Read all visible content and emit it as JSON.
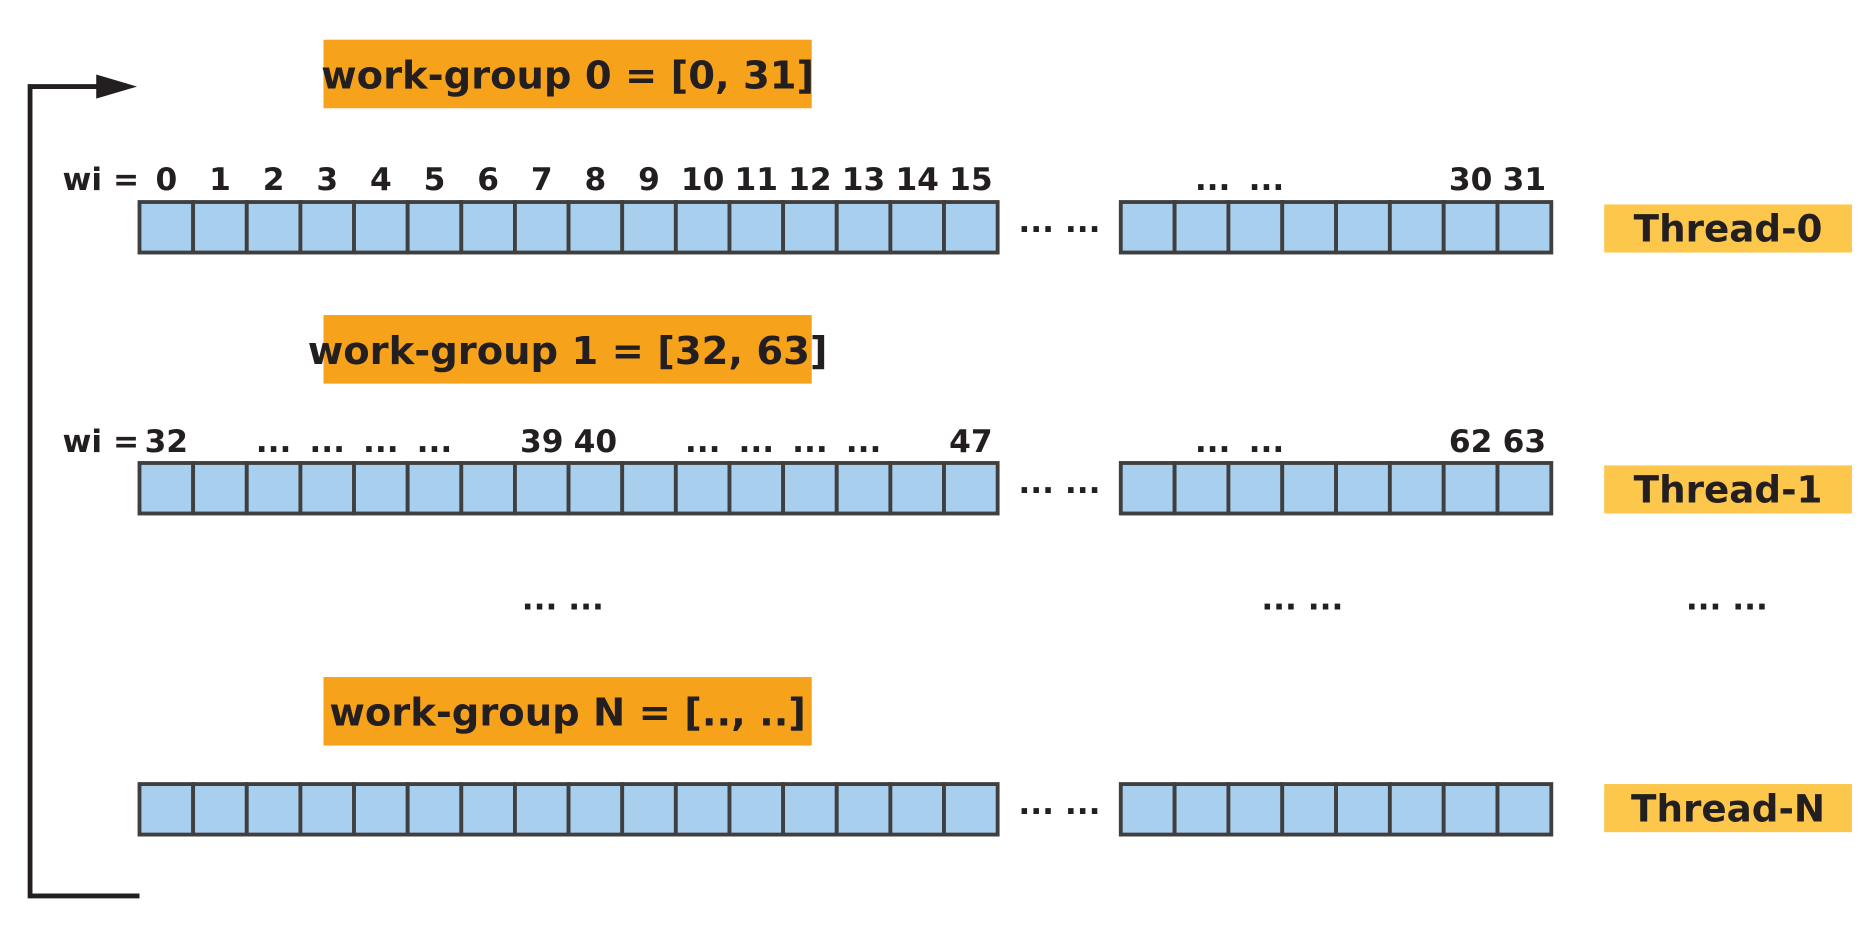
{
  "workgroups": [
    {
      "label": "work-group 0 = [0, 31]",
      "wi_prefix": "wi =",
      "wi_labels_left": [
        "0",
        "1",
        "2",
        "3",
        "4",
        "5",
        "6",
        "7",
        "8",
        "9",
        "10",
        "11",
        "12",
        "13",
        "14",
        "15"
      ],
      "wi_labels_right": [
        "...",
        "...",
        "",
        "",
        "",
        "",
        "30",
        "31"
      ],
      "gap": "... ...",
      "thread": "Thread-0"
    },
    {
      "label": "work-group 1 = [32, 63]",
      "wi_prefix": "wi =",
      "wi_labels_left": [
        "32",
        "",
        "...",
        "...",
        "...",
        "...",
        "",
        "39",
        "40",
        "",
        "...",
        "...",
        "...",
        "...",
        "",
        "47"
      ],
      "wi_labels_right": [
        "...",
        "...",
        "",
        "",
        "",
        "",
        "62",
        "63"
      ],
      "gap": "... ...",
      "thread": "Thread-1"
    },
    {
      "label": "work-group N = [.., ..]",
      "wi_prefix": "",
      "wi_labels_left": [],
      "wi_labels_right": [],
      "gap": "... ...",
      "thread": "Thread-N"
    }
  ],
  "middle_ellipses": [
    "... ...",
    "... ...",
    "... ..."
  ],
  "colors": {
    "workgroup_bg": "#f7a21b",
    "thread_bg": "#fcc74a",
    "cell_fill": "#a9cfee",
    "cell_stroke": "#3f3f3f",
    "text": "#231f20",
    "arrow": "#231f20"
  },
  "icons": {
    "loop_arrow": "loop-back-arrow-icon"
  }
}
